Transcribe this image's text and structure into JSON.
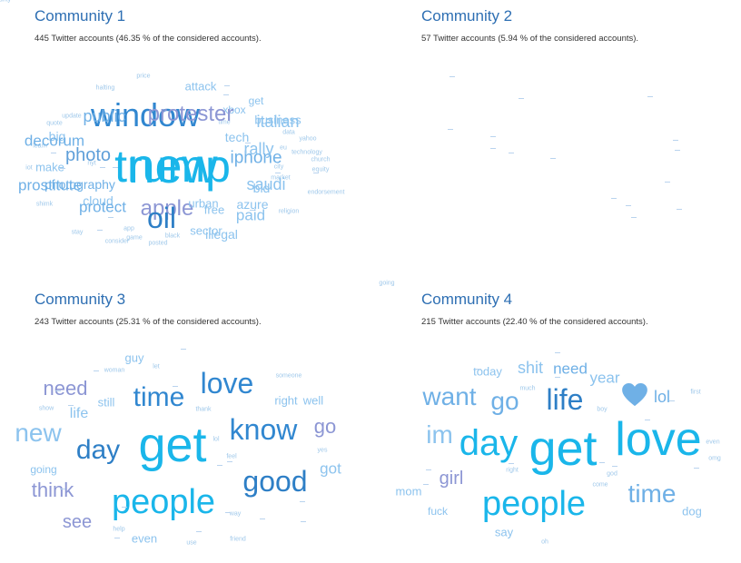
{
  "communities": [
    {
      "title": "Community 1",
      "subtitle": "445 Twitter accounts (46.35 % of the considered accounts).",
      "words": [
        {
          "text": "new",
          "size": 54,
          "color": "#1ab6ea"
        },
        {
          "text": "window",
          "size": 36,
          "color": "#3187d0"
        },
        {
          "text": "apple",
          "size": 24,
          "color": "#8c96d4"
        },
        {
          "text": "photo",
          "size": 20,
          "color": "#5f9fd9"
        },
        {
          "text": "iphone",
          "size": 19,
          "color": "#6fb0e6"
        },
        {
          "text": "photography",
          "size": 14,
          "color": "#6fb0e6"
        },
        {
          "text": "business",
          "size": 13,
          "color": "#8cc3ee"
        },
        {
          "text": "tech",
          "size": 14,
          "color": "#8cc3ee"
        },
        {
          "text": "bid",
          "size": 14,
          "color": "#8cc3ee"
        },
        {
          "text": "azure",
          "size": 14,
          "color": "#8cc3ee"
        },
        {
          "text": "cloud",
          "size": 14,
          "color": "#8cc3ee"
        },
        {
          "text": "big",
          "size": 14,
          "color": "#8cc3ee"
        },
        {
          "text": "sector",
          "size": 13,
          "color": "#8cc3ee"
        },
        {
          "text": "free",
          "size": 13,
          "color": "#8cc3ee"
        },
        {
          "text": "xbox",
          "size": 12,
          "color": "#8cc3ee"
        },
        {
          "text": "get",
          "size": 12,
          "color": "#8cc3ee"
        },
        {
          "text": "time",
          "size": 7,
          "color": "#9fc8ea"
        },
        {
          "text": "data",
          "size": 7,
          "color": "#9fc8ea"
        },
        {
          "text": "technology",
          "size": 7,
          "color": "#9fc8ea"
        },
        {
          "text": "update",
          "size": 7,
          "color": "#9fc8ea"
        },
        {
          "text": "learn",
          "size": 7,
          "color": "#9fc8ea"
        },
        {
          "text": "iot",
          "size": 7,
          "color": "#9fc8ea"
        },
        {
          "text": "market",
          "size": 7,
          "color": "#9fc8ea"
        },
        {
          "text": "app",
          "size": 7,
          "color": "#9fc8ea"
        },
        {
          "text": "game",
          "size": 7,
          "color": "#9fc8ea"
        },
        {
          "text": "black",
          "size": 7,
          "color": "#9fc8ea"
        },
        {
          "text": "security",
          "size": 7,
          "color": "#9fc8ea"
        }
      ]
    },
    {
      "title": "Community 2",
      "subtitle": "57 Twitter accounts (5.94 % of the considered accounts).",
      "words": [
        {
          "text": "trump",
          "size": 50,
          "color": "#1ab6ea"
        },
        {
          "text": "oil",
          "size": 32,
          "color": "#2e7fc6"
        },
        {
          "text": "protester",
          "size": 24,
          "color": "#8c96d4"
        },
        {
          "text": "public",
          "size": 18,
          "color": "#6fb0e6"
        },
        {
          "text": "decorum",
          "size": 17,
          "color": "#6fb0e6"
        },
        {
          "text": "italian",
          "size": 18,
          "color": "#8cc3ee"
        },
        {
          "text": "rally",
          "size": 18,
          "color": "#8cc3ee"
        },
        {
          "text": "saudi",
          "size": 18,
          "color": "#8cc3ee"
        },
        {
          "text": "prostitute",
          "size": 17,
          "color": "#6fb0e6"
        },
        {
          "text": "protect",
          "size": 17,
          "color": "#6fb0e6"
        },
        {
          "text": "paid",
          "size": 17,
          "color": "#8cc3ee"
        },
        {
          "text": "illegal",
          "size": 14,
          "color": "#8cc3ee"
        },
        {
          "text": "urban",
          "size": 13,
          "color": "#8cc3ee"
        },
        {
          "text": "make",
          "size": 13,
          "color": "#8cc3ee"
        },
        {
          "text": "attack",
          "size": 13,
          "color": "#8cc3ee"
        },
        {
          "text": "price",
          "size": 7,
          "color": "#9fc8ea"
        },
        {
          "text": "halting",
          "size": 7,
          "color": "#9fc8ea"
        },
        {
          "text": "quote",
          "size": 7,
          "color": "#9fc8ea"
        },
        {
          "text": "yahoo",
          "size": 7,
          "color": "#9fc8ea"
        },
        {
          "text": "eu",
          "size": 7,
          "color": "#9fc8ea"
        },
        {
          "text": "city",
          "size": 7,
          "color": "#9fc8ea"
        },
        {
          "text": "church",
          "size": 7,
          "color": "#9fc8ea"
        },
        {
          "text": "equity",
          "size": 7,
          "color": "#9fc8ea"
        },
        {
          "text": "nyt",
          "size": 7,
          "color": "#9fc8ea"
        },
        {
          "text": "endorsement",
          "size": 7,
          "color": "#9fc8ea"
        },
        {
          "text": "shimk",
          "size": 7,
          "color": "#9fc8ea"
        },
        {
          "text": "religion",
          "size": 7,
          "color": "#9fc8ea"
        },
        {
          "text": "stay",
          "size": 7,
          "color": "#9fc8ea"
        },
        {
          "text": "consider",
          "size": 7,
          "color": "#9fc8ea"
        },
        {
          "text": "posted",
          "size": 7,
          "color": "#9fc8ea"
        }
      ]
    },
    {
      "title": "Community 3",
      "subtitle": "243 Twitter accounts (25.31 % of the considered accounts).",
      "words": [
        {
          "text": "get",
          "size": 54,
          "color": "#1ab6ea"
        },
        {
          "text": "people",
          "size": 38,
          "color": "#1ab6ea"
        },
        {
          "text": "know",
          "size": 32,
          "color": "#3187d0"
        },
        {
          "text": "good",
          "size": 32,
          "color": "#2e7fc6"
        },
        {
          "text": "love",
          "size": 32,
          "color": "#3187d0"
        },
        {
          "text": "time",
          "size": 30,
          "color": "#3187d0"
        },
        {
          "text": "day",
          "size": 30,
          "color": "#2e7fc6"
        },
        {
          "text": "new",
          "size": 28,
          "color": "#8cc3ee"
        },
        {
          "text": "need",
          "size": 22,
          "color": "#8c96d4"
        },
        {
          "text": "think",
          "size": 22,
          "color": "#8c96d4"
        },
        {
          "text": "go",
          "size": 22,
          "color": "#8c96d4"
        },
        {
          "text": "see",
          "size": 20,
          "color": "#8c96d4"
        },
        {
          "text": "got",
          "size": 17,
          "color": "#8cc3ee"
        },
        {
          "text": "life",
          "size": 16,
          "color": "#8cc3ee"
        },
        {
          "text": "still",
          "size": 13,
          "color": "#8cc3ee"
        },
        {
          "text": "right",
          "size": 13,
          "color": "#8cc3ee"
        },
        {
          "text": "well",
          "size": 13,
          "color": "#8cc3ee"
        },
        {
          "text": "guy",
          "size": 13,
          "color": "#8cc3ee"
        },
        {
          "text": "even",
          "size": 13,
          "color": "#8cc3ee"
        },
        {
          "text": "going",
          "size": 12,
          "color": "#8cc3ee"
        },
        {
          "text": "woman",
          "size": 7,
          "color": "#9fc8ea"
        },
        {
          "text": "let",
          "size": 7,
          "color": "#9fc8ea"
        },
        {
          "text": "someone",
          "size": 7,
          "color": "#9fc8ea"
        },
        {
          "text": "show",
          "size": 7,
          "color": "#9fc8ea"
        },
        {
          "text": "thank",
          "size": 7,
          "color": "#9fc8ea"
        },
        {
          "text": "lol",
          "size": 7,
          "color": "#9fc8ea"
        },
        {
          "text": "feel",
          "size": 7,
          "color": "#9fc8ea"
        },
        {
          "text": "yes",
          "size": 7,
          "color": "#9fc8ea"
        },
        {
          "text": "way",
          "size": 7,
          "color": "#9fc8ea"
        },
        {
          "text": "help",
          "size": 7,
          "color": "#9fc8ea"
        },
        {
          "text": "use",
          "size": 7,
          "color": "#9fc8ea"
        },
        {
          "text": "friend",
          "size": 7,
          "color": "#9fc8ea"
        }
      ]
    },
    {
      "title": "Community 4",
      "subtitle": "215 Twitter accounts (22.40 % of the considered accounts).",
      "words": [
        {
          "text": "get",
          "size": 54,
          "color": "#1ab6ea"
        },
        {
          "text": "love",
          "size": 52,
          "color": "#1ab6ea"
        },
        {
          "text": "day",
          "size": 40,
          "color": "#1ab6ea"
        },
        {
          "text": "people",
          "size": 38,
          "color": "#1ab6ea"
        },
        {
          "text": "life",
          "size": 32,
          "color": "#2e7fc6"
        },
        {
          "text": "time",
          "size": 28,
          "color": "#6fb0e6"
        },
        {
          "text": "want",
          "size": 28,
          "color": "#6fb0e6"
        },
        {
          "text": "go",
          "size": 28,
          "color": "#6fb0e6"
        },
        {
          "text": "im",
          "size": 28,
          "color": "#8cc3ee"
        },
        {
          "text": "girl",
          "size": 20,
          "color": "#8c96d4"
        },
        {
          "text": "lol",
          "size": 18,
          "color": "#6fb0e6"
        },
        {
          "text": "shit",
          "size": 18,
          "color": "#8cc3ee"
        },
        {
          "text": "need",
          "size": 17,
          "color": "#6fb0e6"
        },
        {
          "text": "year",
          "size": 17,
          "color": "#8cc3ee"
        },
        {
          "text": "mom",
          "size": 13,
          "color": "#8cc3ee"
        },
        {
          "text": "dog",
          "size": 13,
          "color": "#8cc3ee"
        },
        {
          "text": "fuck",
          "size": 12,
          "color": "#8cc3ee"
        },
        {
          "text": "say",
          "size": 13,
          "color": "#8cc3ee"
        },
        {
          "text": "today",
          "size": 13,
          "color": "#8cc3ee"
        },
        {
          "text": "much",
          "size": 7,
          "color": "#9fc8ea"
        },
        {
          "text": "boy",
          "size": 7,
          "color": "#9fc8ea"
        },
        {
          "text": "first",
          "size": 7,
          "color": "#9fc8ea"
        },
        {
          "text": "even",
          "size": 7,
          "color": "#9fc8ea"
        },
        {
          "text": "omg",
          "size": 7,
          "color": "#9fc8ea"
        },
        {
          "text": "right",
          "size": 7,
          "color": "#9fc8ea"
        },
        {
          "text": "god",
          "size": 7,
          "color": "#9fc8ea"
        },
        {
          "text": "come",
          "size": 7,
          "color": "#9fc8ea"
        },
        {
          "text": "oh",
          "size": 7,
          "color": "#9fc8ea"
        },
        {
          "text": "going",
          "size": 7,
          "color": "#9fc8ea"
        }
      ],
      "heart_icon": {
        "name": "heart-icon",
        "color": "#6fb0e6"
      }
    }
  ]
}
